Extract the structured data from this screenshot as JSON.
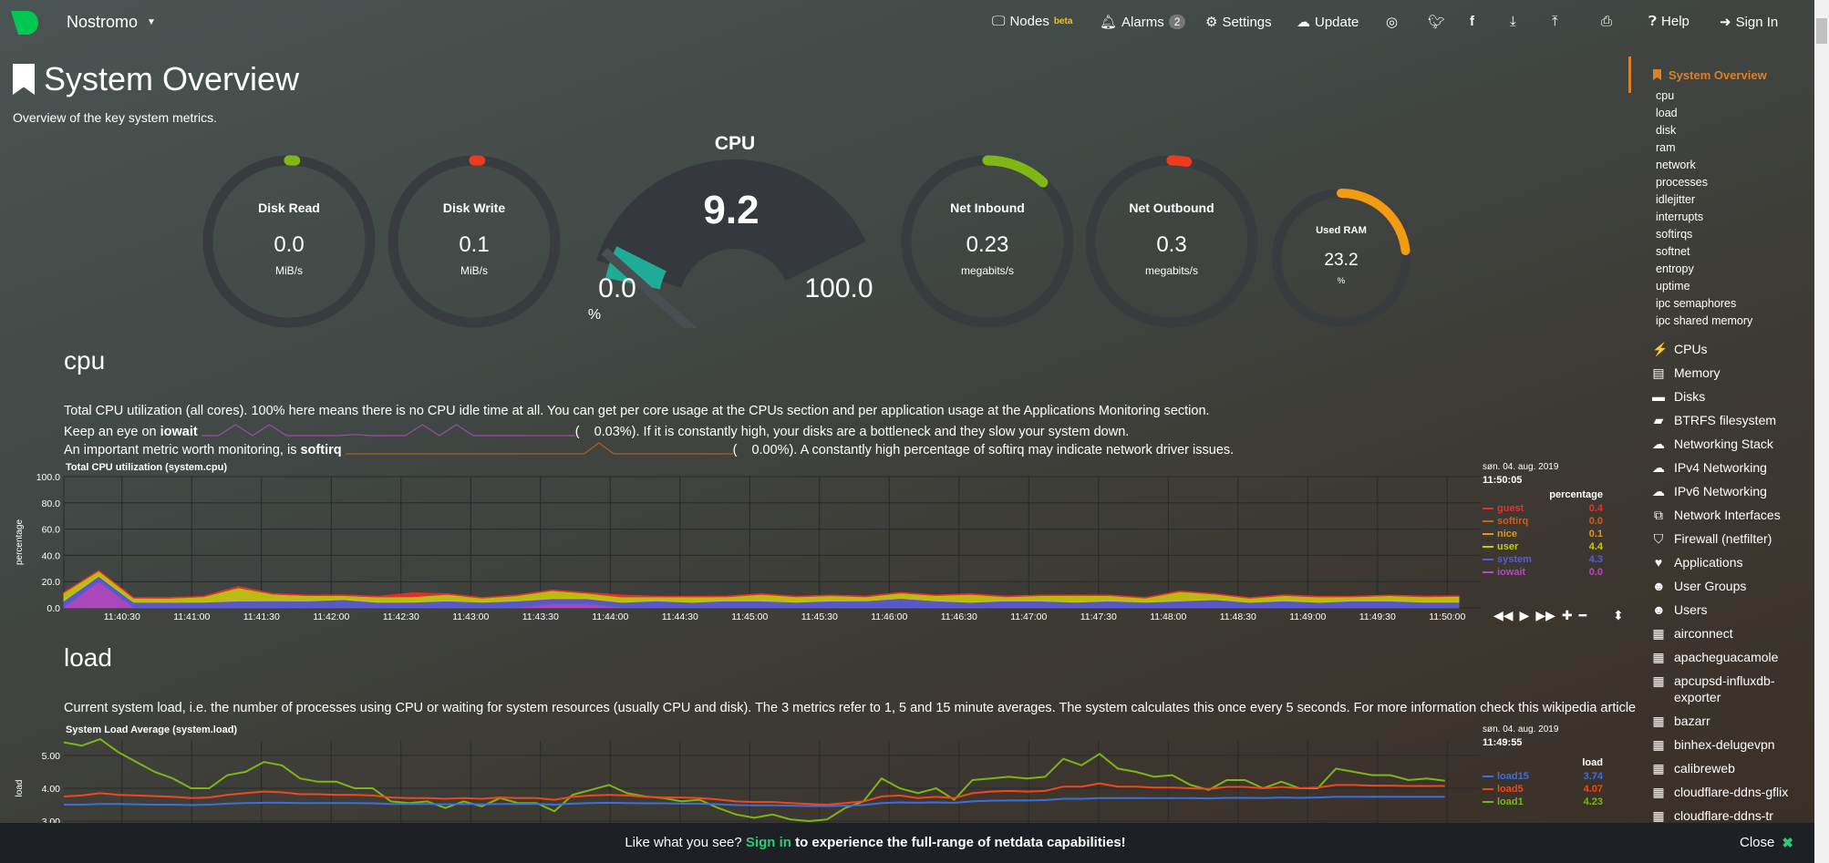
{
  "navbar": {
    "brand": "Nostromo",
    "items": [
      {
        "label": "Nodes",
        "sup": "beta",
        "icon": "monitor-icon"
      },
      {
        "label": "Alarms",
        "badge": "2",
        "icon": "bell-icon"
      },
      {
        "label": "Settings",
        "icon": "gear-icon"
      },
      {
        "label": "Update",
        "icon": "cloud-download-icon"
      }
    ],
    "icons": [
      "github-icon",
      "twitter-icon",
      "facebook-icon",
      "download-icon",
      "upload-icon",
      "print-icon"
    ],
    "help": "Help",
    "signin": "Sign In"
  },
  "page": {
    "title": "System Overview",
    "subtitle": "Overview of the key system metrics."
  },
  "gauges": [
    {
      "title": "Disk Read",
      "value": "0.0",
      "unit": "MiB/s",
      "fill": 0.0,
      "color": "#7fb814"
    },
    {
      "title": "Disk Write",
      "value": "0.1",
      "unit": "MiB/s",
      "fill": 0.01,
      "color": "#ee3a1e"
    },
    {
      "title": "Net Inbound",
      "value": "0.23",
      "unit": "megabits/s",
      "fill": 0.12,
      "color": "#7fb814"
    },
    {
      "title": "Net Outbound",
      "value": "0.3",
      "unit": "megabits/s",
      "fill": 0.03,
      "color": "#ee3a1e"
    },
    {
      "title": "Used RAM",
      "value": "23.2",
      "unit": "%",
      "fill": 0.232,
      "color": "#f39c12"
    }
  ],
  "cpu_gauge": {
    "title": "CPU",
    "value": "9.2",
    "min": "0.0",
    "max": "100.0",
    "unit": "%",
    "fill": 0.092,
    "color": "#1fab95"
  },
  "cpu_section": {
    "heading": "cpu",
    "line1": "Total CPU utilization (all cores). 100% here means there is no CPU idle time at all. You can get per core usage at the CPUs section and per application usage at the Applications Monitoring section.",
    "line2_a": "Keep an eye on ",
    "line2_b": "iowait",
    "line2_c": "0.03%). If it is constantly high, your disks are a bottleneck and they slow your system down.",
    "line3_a": "An important metric worth monitoring, is ",
    "line3_b": "softirq",
    "line3_c": "0.00%). A constantly high percentage of softirq may indicate network driver issues.",
    "paren": "(",
    "iowait_spark": [
      0,
      0,
      3,
      0,
      3,
      0,
      0,
      0,
      0,
      0.3,
      0,
      0,
      0,
      3,
      0,
      3,
      0,
      0,
      0,
      0,
      0,
      0,
      0
    ],
    "softirq_spark": [
      0,
      0,
      0,
      0,
      0,
      0,
      0,
      0,
      0,
      0,
      0,
      0,
      0,
      0,
      0,
      0,
      0,
      3,
      0,
      0,
      0,
      0,
      0,
      0,
      0,
      0,
      0
    ],
    "controls": [
      "rewind-icon",
      "play-icon",
      "fast-forward-icon",
      "zoom-in-icon",
      "zoom-out-icon",
      "resize-icon"
    ]
  },
  "load_section": {
    "heading": "load",
    "desc": "Current system load, i.e. the number of processes using CPU or waiting for system resources (usually CPU and disk). The 3 metrics refer to 1, 5 and 15 minute averages. The system calculates this once every 5 seconds. For more information check this wikipedia article"
  },
  "chart_data": [
    {
      "type": "area",
      "stacked": true,
      "title": "Total CPU utilization (system.cpu)",
      "ylabel": "percentage",
      "ylim": [
        0,
        100
      ],
      "yticks": [
        "0.0",
        "20.0",
        "40.0",
        "60.0",
        "80.0",
        "100.0"
      ],
      "xticks": [
        "11:40:30",
        "11:41:00",
        "11:41:30",
        "11:42:00",
        "11:42:30",
        "11:43:00",
        "11:43:30",
        "11:44:00",
        "11:44:30",
        "11:45:00",
        "11:45:30",
        "11:46:00",
        "11:46:30",
        "11:47:00",
        "11:47:30",
        "11:48:00",
        "11:48:30",
        "11:49:00",
        "11:49:30",
        "11:50:00"
      ],
      "x_start": "11:40:05",
      "x_step_seconds": 15,
      "grid": true,
      "legend": "right",
      "legend_date": "søn. 04. aug. 2019",
      "legend_time": "11:50:05",
      "legend_units": "percentage",
      "series": [
        {
          "name": "iowait",
          "color": "#b548c6",
          "value": "0.0",
          "values": [
            0.3,
            20,
            0.3,
            0.2,
            0.3,
            0.2,
            0.3,
            0.2,
            0.3,
            0.2,
            0.3,
            0.2,
            0.3,
            0.2,
            3,
            3,
            0.2,
            0.3,
            0.2,
            0.3,
            0.2,
            0.3,
            0.2,
            0.3,
            0.2,
            0.3,
            0.2,
            0.3,
            0.2,
            0.3,
            0.2,
            0.3,
            0.2,
            0.3,
            0.2,
            0.3,
            0.2,
            0.3,
            0.2,
            0.3,
            0
          ]
        },
        {
          "name": "system",
          "color": "#5b5bd6",
          "value": "4.3",
          "values": [
            5,
            4,
            4,
            4,
            4,
            5,
            5,
            5,
            6,
            4,
            4,
            5,
            4,
            5,
            4,
            4,
            4,
            5,
            4,
            5,
            5,
            4,
            5,
            5,
            7,
            5,
            4,
            5,
            5,
            4,
            5,
            4,
            5,
            6,
            4,
            5,
            4,
            5,
            5,
            4,
            4.3
          ]
        },
        {
          "name": "user",
          "color": "#c9c90c",
          "value": "4.4",
          "values": [
            6,
            4,
            3,
            3,
            4,
            10,
            5,
            4,
            3,
            4,
            4,
            5,
            3,
            4,
            6,
            4,
            4,
            3,
            4,
            3,
            5,
            4,
            4,
            3,
            4,
            4,
            6,
            3,
            4,
            5,
            4,
            3,
            7,
            4,
            3,
            4,
            4,
            3,
            4,
            4,
            4.4
          ]
        },
        {
          "name": "nice",
          "color": "#e5951b",
          "value": "0.1",
          "values": [
            0.1,
            0.1,
            0.1,
            0.1,
            0.1,
            0.1,
            0.1,
            0.1,
            0.1,
            0.1,
            0.1,
            0.1,
            0.1,
            0.1,
            0.1,
            0.1,
            0.1,
            0.1,
            0.1,
            0.1,
            0.1,
            0.1,
            0.1,
            0.1,
            0.1,
            0.1,
            0.1,
            0.1,
            0.1,
            0.1,
            0.1,
            0.1,
            0.1,
            0.1,
            0.1,
            0.1,
            0.1,
            0.1,
            0.1,
            0.1,
            0.1
          ]
        },
        {
          "name": "softirq",
          "color": "#d35d1e",
          "value": "0.0",
          "values": [
            0,
            0,
            0,
            0,
            0,
            0,
            0,
            0,
            0,
            0,
            0,
            0,
            0,
            0,
            0,
            0,
            0,
            0,
            0,
            0,
            0,
            0,
            0,
            0,
            0,
            0,
            0,
            0,
            0,
            0,
            0,
            0,
            0,
            0,
            0,
            0,
            0,
            0,
            0,
            0,
            0
          ]
        },
        {
          "name": "guest",
          "color": "#e8312c",
          "value": "0.4",
          "values": [
            0.5,
            0.5,
            0.5,
            0.6,
            0.5,
            1,
            0.5,
            0.5,
            0.6,
            0.5,
            3,
            0.5,
            0.5,
            0.6,
            0.5,
            0.5,
            1.5,
            0.5,
            0.5,
            0.6,
            0.5,
            0.5,
            0.5,
            0.6,
            0.5,
            0.5,
            0.5,
            0.6,
            0.5,
            0.5,
            0.5,
            0.6,
            0.5,
            0.5,
            0.5,
            0.6,
            0.5,
            0.5,
            0.5,
            0.6,
            0.4
          ]
        }
      ]
    },
    {
      "type": "line",
      "title": "System Load Average (system.load)",
      "ylabel": "load",
      "yticks": [
        "3.00",
        "4.00",
        "5.00"
      ],
      "ylim": [
        3.0,
        5.44
      ],
      "grid": true,
      "legend": "right",
      "x_start": "11:40:05",
      "x_step_seconds": 10,
      "legend_date": "søn. 04. aug. 2019",
      "legend_time": "11:49:55",
      "legend_units": "load",
      "series": [
        {
          "name": "load1",
          "color": "#7cb518",
          "value": "4.23",
          "values": [
            5.4,
            5.3,
            5.5,
            5.1,
            4.8,
            4.5,
            4.3,
            4.0,
            4.0,
            4.4,
            4.5,
            4.8,
            4.7,
            4.3,
            4.2,
            4.2,
            4.0,
            4.0,
            3.6,
            3.55,
            3.6,
            3.4,
            3.6,
            3.45,
            3.7,
            3.55,
            3.55,
            3.3,
            3.8,
            3.95,
            4.1,
            3.85,
            3.75,
            3.7,
            3.6,
            3.65,
            3.4,
            3.2,
            3.1,
            3.2,
            3.05,
            3.0,
            3.05,
            3.4,
            3.6,
            4.3,
            4.0,
            3.85,
            4.0,
            3.65,
            4.25,
            4.3,
            4.35,
            4.3,
            4.35,
            4.9,
            4.7,
            5.05,
            4.6,
            4.5,
            4.35,
            4.4,
            4.1,
            3.95,
            4.25,
            4.25,
            4.0,
            4.2,
            4.0,
            4.0,
            4.6,
            4.5,
            4.4,
            4.4,
            4.25,
            4.3,
            4.23
          ]
        },
        {
          "name": "load5",
          "color": "#f0481c",
          "value": "4.07",
          "values": [
            3.75,
            3.78,
            3.85,
            3.8,
            3.78,
            3.76,
            3.74,
            3.7,
            3.72,
            3.8,
            3.85,
            3.9,
            3.88,
            3.82,
            3.82,
            3.8,
            3.8,
            3.78,
            3.72,
            3.7,
            3.7,
            3.68,
            3.7,
            3.68,
            3.72,
            3.7,
            3.7,
            3.65,
            3.74,
            3.78,
            3.8,
            3.78,
            3.74,
            3.72,
            3.72,
            3.7,
            3.66,
            3.6,
            3.58,
            3.58,
            3.55,
            3.52,
            3.5,
            3.55,
            3.6,
            3.75,
            3.78,
            3.7,
            3.74,
            3.7,
            3.85,
            3.9,
            3.92,
            3.9,
            3.92,
            4.05,
            4.05,
            4.15,
            4.05,
            4.05,
            4.02,
            4.02,
            4.0,
            3.98,
            4.04,
            4.04,
            4.0,
            4.04,
            4.0,
            4.02,
            4.1,
            4.1,
            4.08,
            4.08,
            4.07,
            4.07,
            4.07
          ]
        },
        {
          "name": "load15",
          "color": "#3d6fdc",
          "value": "3.74",
          "values": [
            3.5,
            3.5,
            3.52,
            3.52,
            3.51,
            3.5,
            3.5,
            3.49,
            3.5,
            3.53,
            3.55,
            3.56,
            3.56,
            3.55,
            3.55,
            3.55,
            3.55,
            3.54,
            3.52,
            3.52,
            3.52,
            3.51,
            3.52,
            3.51,
            3.52,
            3.52,
            3.52,
            3.5,
            3.53,
            3.55,
            3.56,
            3.55,
            3.54,
            3.54,
            3.53,
            3.53,
            3.51,
            3.49,
            3.48,
            3.48,
            3.47,
            3.46,
            3.46,
            3.47,
            3.49,
            3.55,
            3.57,
            3.56,
            3.57,
            3.56,
            3.6,
            3.62,
            3.63,
            3.63,
            3.64,
            3.68,
            3.68,
            3.7,
            3.7,
            3.7,
            3.7,
            3.7,
            3.7,
            3.69,
            3.71,
            3.71,
            3.7,
            3.72,
            3.71,
            3.72,
            3.74,
            3.74,
            3.74,
            3.74,
            3.74,
            3.74,
            3.74
          ]
        }
      ]
    }
  ],
  "sidebar": {
    "active": "System Overview",
    "sub": [
      "cpu",
      "load",
      "disk",
      "ram",
      "network",
      "processes",
      "idlejitter",
      "interrupts",
      "softirqs",
      "softnet",
      "entropy",
      "uptime",
      "ipc semaphores",
      "ipc shared memory"
    ],
    "items": [
      {
        "label": "CPUs",
        "icon": "bolt-icon",
        "glyph": "⚡"
      },
      {
        "label": "Memory",
        "icon": "memory-icon",
        "glyph": "▤"
      },
      {
        "label": "Disks",
        "icon": "hdd-icon",
        "glyph": "▬"
      },
      {
        "label": "BTRFS filesystem",
        "icon": "folder-icon",
        "glyph": "▰"
      },
      {
        "label": "Networking Stack",
        "icon": "cloud-icon",
        "glyph": "☁"
      },
      {
        "label": "IPv4 Networking",
        "icon": "cloud-icon",
        "glyph": "☁"
      },
      {
        "label": "IPv6 Networking",
        "icon": "cloud-icon",
        "glyph": "☁"
      },
      {
        "label": "Network Interfaces",
        "icon": "sitemap-icon",
        "glyph": "⧉"
      },
      {
        "label": "Firewall (netfilter)",
        "icon": "shield-icon",
        "glyph": "⛉"
      },
      {
        "label": "Applications",
        "icon": "heartbeat-icon",
        "glyph": "♥"
      },
      {
        "label": "User Groups",
        "icon": "users-icon",
        "glyph": "☻"
      },
      {
        "label": "Users",
        "icon": "user-icon",
        "glyph": "☻"
      },
      {
        "label": "airconnect",
        "icon": "grid-icon",
        "glyph": "▦"
      },
      {
        "label": "apacheguacamole",
        "icon": "grid-icon",
        "glyph": "▦"
      },
      {
        "label": "apcupsd-influxdb-exporter",
        "icon": "grid-icon",
        "glyph": "▦"
      },
      {
        "label": "bazarr",
        "icon": "grid-icon",
        "glyph": "▦"
      },
      {
        "label": "binhex-delugevpn",
        "icon": "grid-icon",
        "glyph": "▦"
      },
      {
        "label": "calibreweb",
        "icon": "grid-icon",
        "glyph": "▦"
      },
      {
        "label": "cloudflare-ddns-gflix",
        "icon": "grid-icon",
        "glyph": "▦"
      },
      {
        "label": "cloudflare-ddns-tr",
        "icon": "grid-icon",
        "glyph": "▦"
      }
    ]
  },
  "banner": {
    "pre": "Like what you see? ",
    "link": "Sign in",
    "post": " to experience the full-range of netdata capabilities!",
    "close": "Close",
    "link_color": "#2ecc71"
  }
}
